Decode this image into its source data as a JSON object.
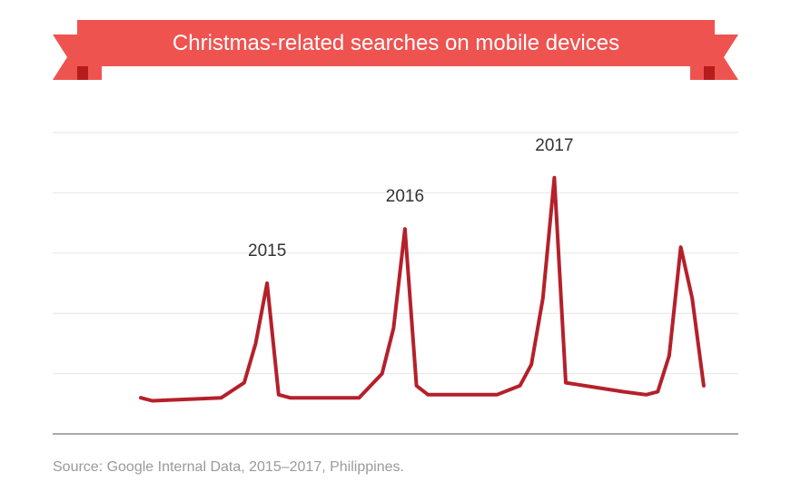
{
  "chart_data": {
    "type": "line",
    "title": "Christmas-related searches on mobile devices",
    "xlabel": "",
    "ylabel": "",
    "x_range": [
      0,
      63
    ],
    "ylim": [
      0,
      100
    ],
    "grid": true,
    "series": [
      {
        "color": "#b5202b",
        "x": [
          0,
          1,
          7,
          9,
          10,
          11,
          12,
          13,
          19,
          21,
          22,
          23,
          24,
          25,
          31,
          33,
          34,
          35,
          36,
          37,
          42,
          44,
          45,
          46,
          47,
          48,
          49
        ],
        "y": [
          12,
          11,
          12,
          17,
          30,
          50,
          13,
          12,
          12,
          20,
          35,
          68,
          16,
          13,
          13,
          16,
          23,
          45,
          85,
          17,
          14,
          13,
          14,
          26,
          62,
          45,
          16
        ]
      }
    ],
    "annotations": [
      {
        "text": "2015",
        "x": 11,
        "y": 50
      },
      {
        "text": "2016",
        "x": 23,
        "y": 68
      },
      {
        "text": "2017",
        "x": 36,
        "y": 85
      }
    ]
  },
  "source": "Source: Google Internal Data, 2015–2017, Philippines.",
  "colors": {
    "banner": "#ef5350",
    "banner_dark": "#b71c1c",
    "line": "#b5202b",
    "grid": "#e6e6e6",
    "axis": "#777777"
  }
}
